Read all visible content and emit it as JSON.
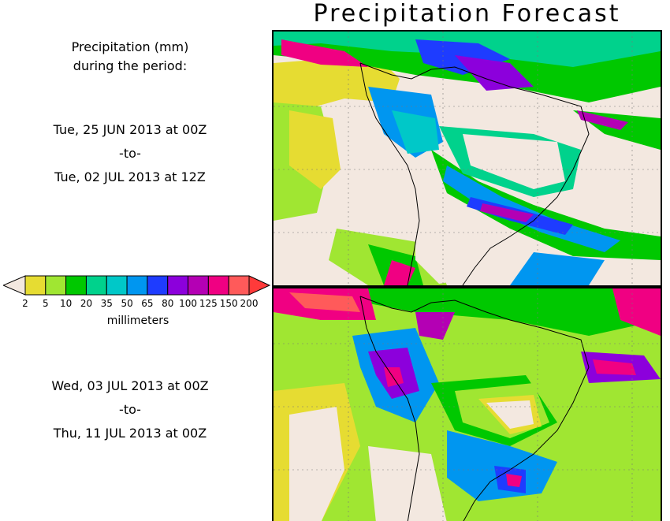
{
  "title": "Precipitation Forecast",
  "legend_heading": [
    "Precipitation (mm)",
    "during the period:"
  ],
  "periods": [
    {
      "start": "Tue, 25 JUN 2013 at 00Z",
      "sep": "-to-",
      "end": "Tue, 02 JUL 2013 at 12Z"
    },
    {
      "start": "Wed, 03 JUL 2013 at 00Z",
      "sep": "-to-",
      "end": "Thu, 11 JUL 2013 at 00Z"
    }
  ],
  "colorbar": {
    "unit": "millimeters",
    "ticks": [
      "2",
      "5",
      "10",
      "20",
      "35",
      "50",
      "65",
      "80",
      "100",
      "125",
      "150",
      "200"
    ],
    "below_color": "#f3e8e0",
    "above_color": "#ff3a3a",
    "colors": [
      "#e6dc32",
      "#a0e632",
      "#00c800",
      "#00d28c",
      "#00c8c8",
      "#0096f0",
      "#1e3cff",
      "#8c00dc",
      "#b400b4",
      "#f00082",
      "#ff5a5a"
    ]
  },
  "map_colors": {
    "background": "#f3e8e0",
    "land_outline": "#000000",
    "grid": "#777777"
  }
}
